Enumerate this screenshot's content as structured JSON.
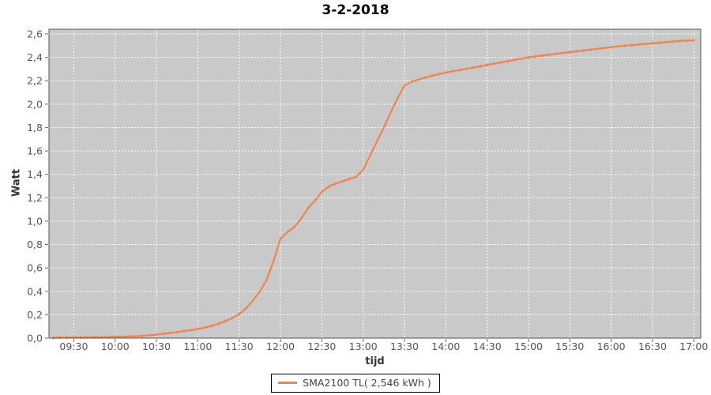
{
  "title": "3-2-2018",
  "colors": {
    "line": "#ef8450",
    "plot_bg": "#c9c9c9",
    "grid": "#ffffff",
    "plot_border": "#545454",
    "tick_mark": "#666666",
    "tick_label": "#555555",
    "axis_label": "#333333",
    "title_color": "#000000",
    "legend_border": "#000000",
    "legend_text": "#444444"
  },
  "chart_data": {
    "type": "line",
    "title": "3-2-2018",
    "xlabel": "tijd",
    "ylabel": "Watt",
    "ylim": [
      0.0,
      2.64
    ],
    "x_range_time": [
      "09:12",
      "17:05"
    ],
    "grid": "white dashed gridlines on gray plot background",
    "legend": {
      "position": "bottom-center",
      "entries": [
        {
          "label": "SMA2100 TL( 2,546 kWh )",
          "color": "#ef8450"
        }
      ]
    },
    "x_tick_labels": [
      "09:30",
      "10:00",
      "10:30",
      "11:00",
      "11:30",
      "12:00",
      "12:30",
      "13:00",
      "13:30",
      "14:00",
      "14:30",
      "15:00",
      "15:30",
      "16:00",
      "16:30",
      "17:00"
    ],
    "y_tick_labels": [
      "0,0",
      "0,2",
      "0,4",
      "0,6",
      "0,8",
      "1,0",
      "1,2",
      "1,4",
      "1,6",
      "1,8",
      "2,0",
      "2,2",
      "2,4",
      "2,6"
    ],
    "y_tick_values": [
      0.0,
      0.2,
      0.4,
      0.6,
      0.8,
      1.0,
      1.2,
      1.4,
      1.6,
      1.8,
      2.0,
      2.2,
      2.4,
      2.6
    ],
    "series": [
      {
        "name": "SMA2100 TL( 2,546 kWh )",
        "times": [
          "09:15",
          "09:20",
          "09:25",
          "09:30",
          "09:35",
          "09:40",
          "09:45",
          "09:50",
          "09:55",
          "10:00",
          "10:05",
          "10:10",
          "10:15",
          "10:20",
          "10:25",
          "10:30",
          "10:35",
          "10:40",
          "10:45",
          "10:50",
          "10:55",
          "11:00",
          "11:05",
          "11:10",
          "11:15",
          "11:20",
          "11:25",
          "11:30",
          "11:35",
          "11:40",
          "11:45",
          "11:50",
          "11:55",
          "12:00",
          "12:05",
          "12:10",
          "12:15",
          "12:20",
          "12:25",
          "12:30",
          "12:35",
          "12:40",
          "12:45",
          "12:50",
          "12:55",
          "13:00",
          "13:05",
          "13:10",
          "13:15",
          "13:20",
          "13:25",
          "13:30",
          "13:35",
          "13:40",
          "13:45",
          "13:50",
          "13:55",
          "14:00",
          "14:05",
          "14:10",
          "14:15",
          "14:20",
          "14:25",
          "14:30",
          "14:35",
          "14:40",
          "14:45",
          "14:50",
          "14:55",
          "15:00",
          "15:05",
          "15:10",
          "15:15",
          "15:20",
          "15:25",
          "15:30",
          "15:35",
          "15:40",
          "15:45",
          "15:50",
          "15:55",
          "16:00",
          "16:05",
          "16:10",
          "16:15",
          "16:20",
          "16:25",
          "16:30",
          "16:35",
          "16:40",
          "16:45",
          "16:50",
          "16:55",
          "17:00"
        ],
        "values": [
          0.003,
          0.004,
          0.005,
          0.006,
          0.007,
          0.008,
          0.009,
          0.009,
          0.01,
          0.011,
          0.012,
          0.014,
          0.016,
          0.019,
          0.024,
          0.03,
          0.037,
          0.044,
          0.052,
          0.06,
          0.068,
          0.078,
          0.09,
          0.105,
          0.123,
          0.145,
          0.172,
          0.205,
          0.255,
          0.32,
          0.4,
          0.5,
          0.66,
          0.85,
          0.905,
          0.95,
          1.02,
          1.11,
          1.175,
          1.25,
          1.295,
          1.32,
          1.34,
          1.36,
          1.38,
          1.44,
          1.56,
          1.68,
          1.8,
          1.93,
          2.05,
          2.16,
          2.19,
          2.21,
          2.228,
          2.243,
          2.257,
          2.27,
          2.281,
          2.292,
          2.302,
          2.312,
          2.323,
          2.335,
          2.346,
          2.357,
          2.368,
          2.379,
          2.39,
          2.4,
          2.408,
          2.415,
          2.422,
          2.43,
          2.438,
          2.445,
          2.452,
          2.459,
          2.466,
          2.473,
          2.48,
          2.488,
          2.494,
          2.5,
          2.505,
          2.51,
          2.515,
          2.52,
          2.525,
          2.53,
          2.535,
          2.54,
          2.543,
          2.546
        ]
      }
    ]
  }
}
